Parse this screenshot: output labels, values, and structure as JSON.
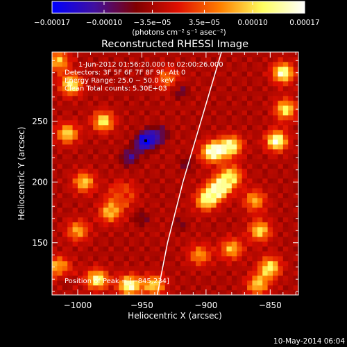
{
  "chart_data": {
    "type": "heatmap",
    "title": "Reconstructed RHESSI Image",
    "xlabel": "Heliocentric X (arcsec)",
    "ylabel": "Heliocentric Y (arcsec)",
    "xlim": [
      -1020,
      -828
    ],
    "ylim": [
      107,
      307
    ],
    "x_ticks": [
      -1000,
      -950,
      -900,
      -850
    ],
    "x_tick_labels": [
      "−1000",
      "−950",
      "−900",
      "−850"
    ],
    "y_ticks": [
      150,
      200,
      250
    ],
    "y_tick_labels": [
      "150",
      "200",
      "250"
    ],
    "colorbar": {
      "range": [
        -0.00017,
        0.00017
      ],
      "ticks": [
        -0.00017,
        -0.0001,
        -3.5e-05,
        3.5e-05,
        0.0001,
        0.00017
      ],
      "tick_labels": [
        "−0.00017",
        "−0.00010",
        "−3.5e−05",
        "3.5e−05",
        "0.00010",
        "0.00017"
      ],
      "unit_label": "(photons cm⁻² s⁻¹ asec⁻²)",
      "colors": [
        "#0000ff",
        "#4010a0",
        "#800000",
        "#e01000",
        "#ff8000",
        "#ffff60",
        "#ffffff"
      ]
    },
    "info_lines": [
      "1‑Jun‑2012 01:56:20.000 to 02:00:26.000",
      "Detectors: 3F 5F 6F 7F 8F 9F, Att 0",
      "Energy Range: 25.0 − 50.0 keV",
      "Clean     Total counts: 5.30E+03"
    ],
    "peak_label": "Position of Peak = [−845,234]",
    "peak_position": [
      -845,
      234
    ],
    "limb_curve": [
      [
        -938,
        107
      ],
      [
        -930,
        150
      ],
      [
        -918,
        200
      ],
      [
        -904,
        250
      ],
      [
        -888,
        307
      ]
    ],
    "min_marker": [
      -947,
      234
    ],
    "hot_spots": [
      {
        "x": -1005,
        "y": 280,
        "v": 0.00013
      },
      {
        "x": -1008,
        "y": 240,
        "v": 0.00011
      },
      {
        "x": -980,
        "y": 250,
        "v": 0.00012
      },
      {
        "x": -995,
        "y": 200,
        "v": 0.0001
      },
      {
        "x": -975,
        "y": 175,
        "v": 9e-05
      },
      {
        "x": -965,
        "y": 190,
        "v": 0.00012
      },
      {
        "x": -1000,
        "y": 160,
        "v": 8e-05
      },
      {
        "x": -985,
        "y": 120,
        "v": 0.00014
      },
      {
        "x": -960,
        "y": 115,
        "v": 0.00016
      },
      {
        "x": -940,
        "y": 115,
        "v": 0.0001
      },
      {
        "x": -895,
        "y": 225,
        "v": 0.00017
      },
      {
        "x": -880,
        "y": 230,
        "v": 0.00013
      },
      {
        "x": -890,
        "y": 195,
        "v": 0.00015
      },
      {
        "x": -900,
        "y": 185,
        "v": 0.00012
      },
      {
        "x": -880,
        "y": 205,
        "v": 0.0001
      },
      {
        "x": -858,
        "y": 160,
        "v": 0.00011
      },
      {
        "x": -862,
        "y": 185,
        "v": 8e-05
      },
      {
        "x": -850,
        "y": 130,
        "v": 0.00012
      },
      {
        "x": -860,
        "y": 115,
        "v": 9e-05
      },
      {
        "x": -845,
        "y": 234,
        "v": 0.00017
      },
      {
        "x": -840,
        "y": 290,
        "v": 0.00016
      },
      {
        "x": -838,
        "y": 260,
        "v": 0.00012
      },
      {
        "x": -905,
        "y": 140,
        "v": 7e-05
      },
      {
        "x": -880,
        "y": 145,
        "v": 9e-05
      },
      {
        "x": -1015,
        "y": 130,
        "v": 0.0001
      },
      {
        "x": -930,
        "y": 285,
        "v": 6e-05
      },
      {
        "x": -1015,
        "y": 300,
        "v": 9e-05
      }
    ],
    "cold_spots": [
      {
        "x": -947,
        "y": 234,
        "v": -0.00017
      },
      {
        "x": -960,
        "y": 220,
        "v": -0.0001
      },
      {
        "x": -935,
        "y": 240,
        "v": -8e-05
      },
      {
        "x": -965,
        "y": 190,
        "v": -9e-05
      },
      {
        "x": -950,
        "y": 170,
        "v": -7e-05
      },
      {
        "x": -920,
        "y": 275,
        "v": -8e-05
      },
      {
        "x": -915,
        "y": 215,
        "v": -7e-05
      },
      {
        "x": -1010,
        "y": 120,
        "v": -6e-05
      },
      {
        "x": -920,
        "y": 165,
        "v": -6e-05
      }
    ]
  },
  "footer": {
    "timestamp": "10‑May‑2014 06:04"
  }
}
